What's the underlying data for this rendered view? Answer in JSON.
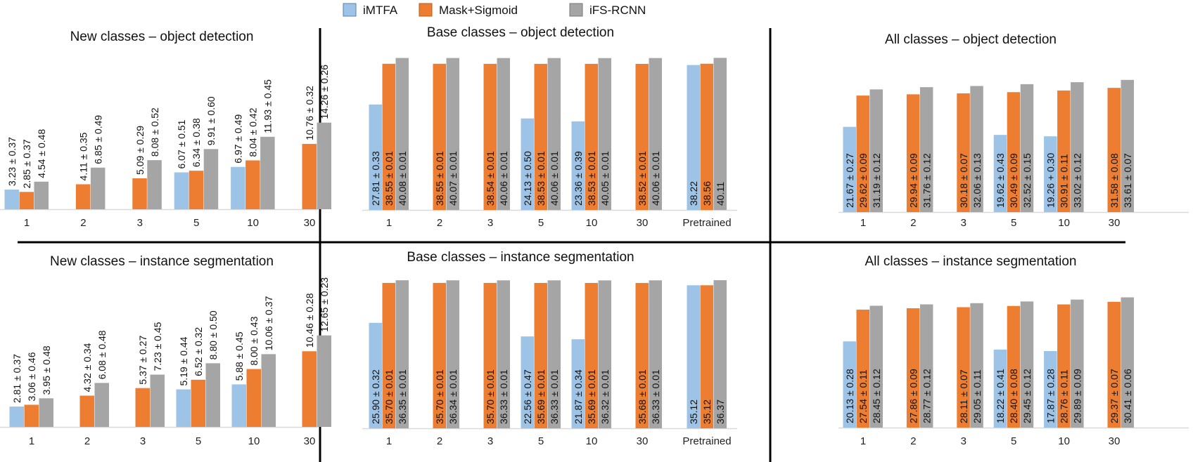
{
  "legend": [
    {
      "name": "iMTFA",
      "color": "#9DC3E6"
    },
    {
      "name": "Mask+Sigmoid",
      "color": "#ED7D31"
    },
    {
      "name": "iFS-RCNN",
      "color": "#A5A5A5"
    }
  ],
  "chart_data": [
    {
      "type": "bar",
      "title": "New classes – object detection",
      "categories": [
        "1",
        "2",
        "3",
        "5",
        "10",
        "30"
      ],
      "series": [
        {
          "name": "iMTFA",
          "values": [
            3.23,
            null,
            null,
            6.07,
            6.97,
            null
          ],
          "labels": [
            "3.23 ± 0.37",
            null,
            null,
            "6.07 ± 0.51",
            "6.97 ± 0.49",
            null
          ]
        },
        {
          "name": "Mask+Sigmoid",
          "values": [
            2.85,
            4.11,
            5.09,
            6.34,
            8.04,
            10.76
          ],
          "labels": [
            "2.85 ± 0.37",
            "4.11 ± 0.35",
            "5.09 ± 0.29",
            "6.34 ± 0.38",
            "8.04 ± 0.42",
            "10.76 ± 0.32"
          ]
        },
        {
          "name": "iFS-RCNN",
          "values": [
            4.54,
            6.85,
            8.08,
            9.91,
            11.93,
            14.26
          ],
          "labels": [
            "4.54 ± 0.48",
            "6.85 ± 0.49",
            "8.08 ± 0.52",
            "9.91 ± 0.60",
            "11.93 ± 0.45",
            "14.26 ± 0.26"
          ]
        }
      ]
    },
    {
      "type": "bar",
      "title": "Base classes – object detection",
      "categories": [
        "1",
        "2",
        "3",
        "5",
        "10",
        "30",
        "Pretrained"
      ],
      "series": [
        {
          "name": "iMTFA",
          "values": [
            27.81,
            null,
            null,
            24.13,
            23.36,
            null,
            38.22
          ],
          "labels": [
            "27.81 ± 0.33",
            null,
            null,
            "24.13 ± 0.50",
            "23.36 ± 0.39",
            null,
            "38.22"
          ]
        },
        {
          "name": "Mask+Sigmoid",
          "values": [
            38.55,
            38.55,
            38.54,
            38.53,
            38.53,
            38.52,
            38.56
          ],
          "labels": [
            "38.55 ± 0.01",
            "38.55 ± 0.01",
            "38.54 ± 0.01",
            "38.53 ± 0.01",
            "38.53 ± 0.01",
            "38.52 ± 0.01",
            "38.56"
          ]
        },
        {
          "name": "iFS-RCNN",
          "values": [
            40.08,
            40.07,
            40.06,
            40.06,
            40.05,
            40.06,
            40.11
          ],
          "labels": [
            "40.08 ± 0.01",
            "40.07 ± 0.01",
            "40.06 ± 0.01",
            "40.06 ± 0.01",
            "40.05 ± 0.01",
            "40.06 ± 0.01",
            "40.11"
          ]
        }
      ]
    },
    {
      "type": "bar",
      "title": "All classes – object detection",
      "categories": [
        "1",
        "2",
        "3",
        "5",
        "10",
        "30"
      ],
      "series": [
        {
          "name": "iMTFA",
          "values": [
            21.67,
            null,
            null,
            19.62,
            19.26,
            null
          ],
          "labels": [
            "21.67 ± 0.27",
            null,
            null,
            "19.62 ± 0.43",
            "19.26 + 0.30",
            null
          ]
        },
        {
          "name": "Mask+Sigmoid",
          "values": [
            29.62,
            29.94,
            30.18,
            30.49,
            30.91,
            31.58
          ],
          "labels": [
            "29.62 ± 0.09",
            "29.94 ± 0.09",
            "30.18 ± 0.07",
            "30.49 ± 0.09",
            "30.91 ± 0.11",
            "31.58 ± 0.08"
          ]
        },
        {
          "name": "iFS-RCNN",
          "values": [
            31.19,
            31.76,
            32.06,
            32.52,
            33.02,
            33.61
          ],
          "labels": [
            "31.19 ± 0.12",
            "31.76 ± 0.12",
            "32.06 ± 0.13",
            "32.52 ± 0.15",
            "33.02 ± 0.12",
            "33.61 ± 0.07"
          ]
        }
      ]
    },
    {
      "type": "bar",
      "title": "New classes – instance segmentation",
      "categories": [
        "1",
        "2",
        "3",
        "5",
        "10",
        "30"
      ],
      "series": [
        {
          "name": "iMTFA",
          "values": [
            2.81,
            null,
            null,
            5.19,
            5.88,
            null
          ],
          "labels": [
            "2.81 ± 0.37",
            null,
            null,
            "5.19 ± 0.44",
            "5.88 ± 0.45",
            null
          ]
        },
        {
          "name": "Mask+Sigmoid",
          "values": [
            3.06,
            4.32,
            5.37,
            6.52,
            8.0,
            10.46
          ],
          "labels": [
            "3.06 ± 0.46",
            "4.32 ± 0.34",
            "5.37 ± 0.27",
            "6.52 ± 0.32",
            "8.00 ± 0.43",
            "10.46 ± 0.28"
          ]
        },
        {
          "name": "iFS-RCNN",
          "values": [
            3.95,
            6.08,
            7.23,
            8.8,
            10.06,
            12.65
          ],
          "labels": [
            "3.95 ± 0.48",
            "6.08 ± 0.48",
            "7.23 ± 0.45",
            "8.80 ± 0.50",
            "10.06 ± 0.37",
            "12.65 ± 0.23"
          ]
        }
      ]
    },
    {
      "type": "bar",
      "title": "Base classes – instance segmentation",
      "categories": [
        "1",
        "2",
        "3",
        "5",
        "10",
        "30",
        "Pretrained"
      ],
      "series": [
        {
          "name": "iMTFA",
          "values": [
            25.9,
            null,
            null,
            22.56,
            21.87,
            null,
            35.12
          ],
          "labels": [
            "25.90 ± 0.32",
            null,
            null,
            "22.56 ± 0.47",
            "21.87 ± 0.34",
            null,
            "35.12"
          ]
        },
        {
          "name": "Mask+Sigmoid",
          "values": [
            35.7,
            35.7,
            35.7,
            35.69,
            35.69,
            35.68,
            35.12
          ],
          "labels": [
            "35.70 ± 0.01",
            "35.70 ± 0.01",
            "35.70 ± 0.01",
            "35.69 ± 0.01",
            "35.69 ± 0.01",
            "35.68 ± 0.01",
            "35.12"
          ]
        },
        {
          "name": "iFS-RCNN",
          "values": [
            36.35,
            36.34,
            36.33,
            36.33,
            36.32,
            36.33,
            36.37
          ],
          "labels": [
            "36.35 ± 0.01",
            "36.34 ± 0.01",
            "36.33 ± 0.01",
            "36.33 ± 0.01",
            "36.32 ± 0.01",
            "36.33 ± 0.01",
            "36.37"
          ]
        }
      ]
    },
    {
      "type": "bar",
      "title": "All classes – instance segmentation",
      "categories": [
        "1",
        "2",
        "3",
        "5",
        "10",
        "30"
      ],
      "series": [
        {
          "name": "iMTFA",
          "values": [
            20.13,
            null,
            null,
            18.22,
            17.87,
            null
          ],
          "labels": [
            "20.13 ± 0.28",
            null,
            null,
            "18.22 ± 0.41",
            "17.87 ± 0.28",
            null
          ]
        },
        {
          "name": "Mask+Sigmoid",
          "values": [
            27.54,
            27.86,
            28.11,
            28.4,
            28.76,
            29.37
          ],
          "labels": [
            "27.54 ± 0.11",
            "27.86 ± 0.09",
            "28.11 ± 0.07",
            "28.40 ± 0.08",
            "28.76 ± 0.11",
            "29.37 ± 0.07"
          ]
        },
        {
          "name": "iFS-RCNN",
          "values": [
            28.45,
            28.77,
            29.05,
            29.45,
            29.89,
            30.41
          ],
          "labels": [
            "28.45 ± 0.12",
            "28.77 ± 0.12",
            "29.05 ± 0.11",
            "29.45 ± 0.12",
            "29.89 ± 0.09",
            "30.41 ± 0.06"
          ]
        }
      ]
    }
  ]
}
